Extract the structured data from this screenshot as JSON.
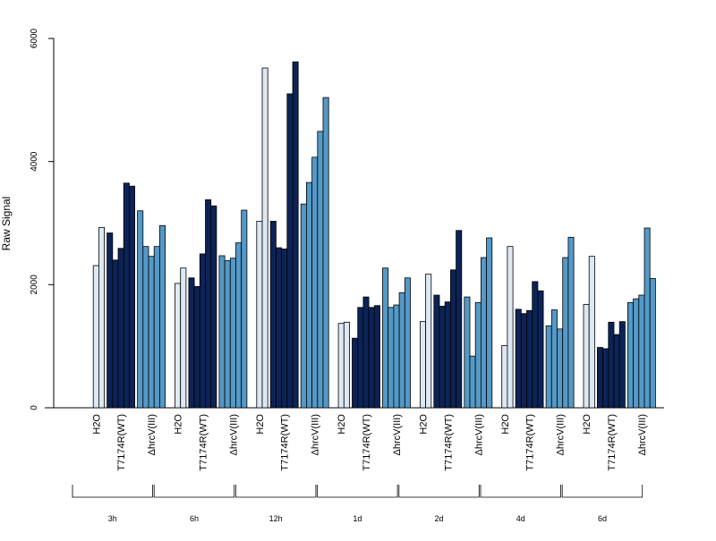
{
  "chart_data": {
    "type": "bar",
    "ylabel": "Raw Signal",
    "ylim": [
      0,
      6000
    ],
    "yticks": [
      "0",
      "2000",
      "4000",
      "6000"
    ],
    "grid": false,
    "legend": "none",
    "colors": {
      "H2O": "#dde8f3",
      "T7174R(WT)": "#0c2356",
      "ΔhrcV(III)": "#5499c7"
    },
    "group_labels": [
      "H2O",
      "T7174R(WT)",
      "ΔhrcV(III)"
    ],
    "timepoints": [
      "3h",
      "6h",
      "12h",
      "1d",
      "2d",
      "4d",
      "6d"
    ],
    "series": [
      {
        "name": "H2O",
        "values": [
          [
            0,
            2310,
            2930
          ],
          [
            0,
            2020,
            2270
          ],
          [
            0,
            3030,
            5520
          ],
          [
            0,
            1370,
            1390
          ],
          [
            0,
            1400,
            2170
          ],
          [
            0,
            1010,
            2620
          ],
          [
            0,
            1680,
            2460
          ]
        ]
      },
      {
        "name": "T7174R(WT)",
        "values": [
          [
            2840,
            2400,
            2590,
            3650,
            3600
          ],
          [
            2110,
            1970,
            2500,
            3380,
            3280
          ],
          [
            3030,
            2600,
            2580,
            5100,
            5620
          ],
          [
            1130,
            1630,
            1800,
            1630,
            1660
          ],
          [
            1830,
            1650,
            1720,
            2240,
            2880
          ],
          [
            1600,
            1530,
            1580,
            2050,
            1900
          ],
          [
            980,
            960,
            1390,
            1190,
            1400
          ]
        ]
      },
      {
        "name": "ΔhrcV(III)",
        "values": [
          [
            3200,
            2620,
            2460,
            2620,
            2960
          ],
          [
            2470,
            2390,
            2430,
            2680,
            3210
          ],
          [
            3310,
            3660,
            4070,
            4490,
            5040
          ],
          [
            2270,
            1630,
            1670,
            1870,
            2110
          ],
          [
            1800,
            840,
            1710,
            2440,
            2760
          ],
          [
            1330,
            1590,
            1280,
            2440,
            2770
          ],
          [
            1710,
            1770,
            1830,
            2920,
            2100
          ]
        ]
      }
    ]
  }
}
